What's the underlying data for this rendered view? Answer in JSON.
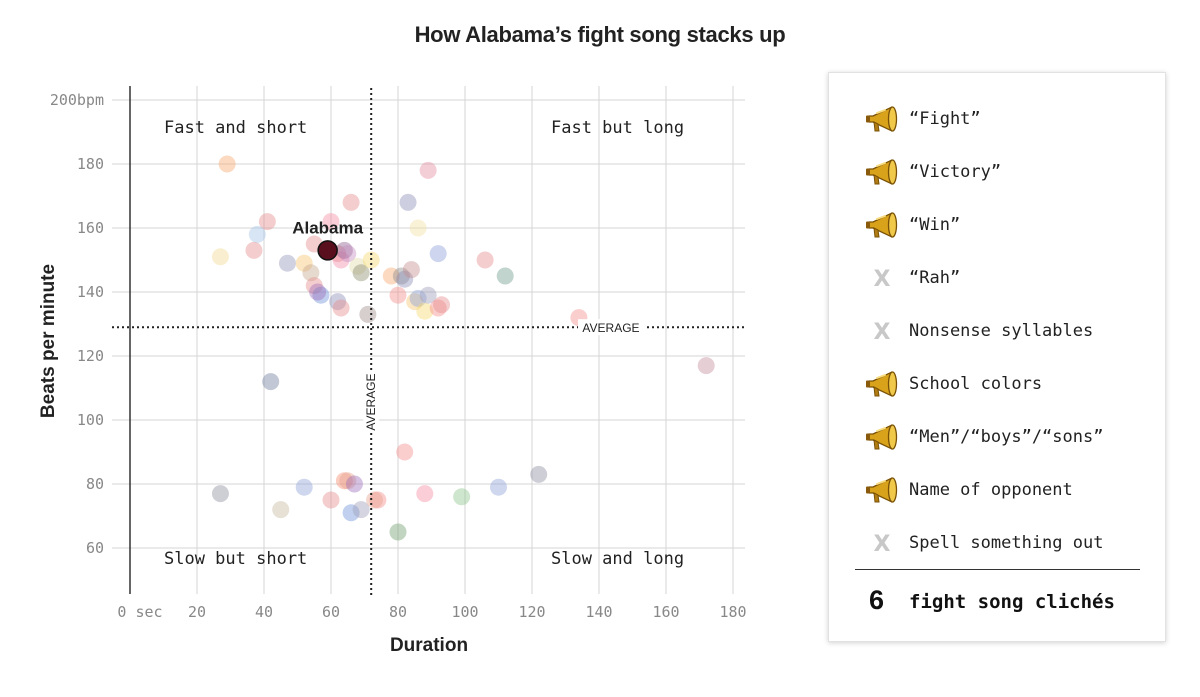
{
  "chart_data": {
    "type": "scatter",
    "title": "How Alabama’s fight song stacks up",
    "xlabel": "Duration",
    "ylabel": "Beats per minute",
    "xlim": [
      0,
      185
    ],
    "ylim": [
      45,
      205
    ],
    "x_ticks": [
      {
        "value": 0,
        "label": "0 sec"
      },
      {
        "value": 20,
        "label": "20"
      },
      {
        "value": 40,
        "label": "40"
      },
      {
        "value": 60,
        "label": "60"
      },
      {
        "value": 80,
        "label": "80"
      },
      {
        "value": 100,
        "label": "100"
      },
      {
        "value": 120,
        "label": "120"
      },
      {
        "value": 140,
        "label": "140"
      },
      {
        "value": 160,
        "label": "160"
      },
      {
        "value": 180,
        "label": "180"
      }
    ],
    "y_ticks": [
      {
        "value": 60,
        "label": "60"
      },
      {
        "value": 80,
        "label": "80"
      },
      {
        "value": 100,
        "label": "100"
      },
      {
        "value": 120,
        "label": "120"
      },
      {
        "value": 140,
        "label": "140"
      },
      {
        "value": 160,
        "label": "160"
      },
      {
        "value": 180,
        "label": "180"
      },
      {
        "value": 200,
        "label": "200bpm"
      }
    ],
    "grid": true,
    "average": {
      "duration": 72,
      "bpm": 129,
      "label": "AVERAGE"
    },
    "quadrant_labels": {
      "top_left": "Fast and short",
      "top_right": "Fast but long",
      "bottom_left": "Slow but short",
      "bottom_right": "Slow and long"
    },
    "highlight": {
      "name": "Alabama",
      "x": 59,
      "y": 153,
      "color": "#5a0f1e"
    },
    "points": [
      {
        "x": 29,
        "y": 180,
        "color": "#f5a66b"
      },
      {
        "x": 41,
        "y": 162,
        "color": "#e58a8a"
      },
      {
        "x": 38,
        "y": 158,
        "color": "#9fc0e8"
      },
      {
        "x": 37,
        "y": 153,
        "color": "#e58a8a"
      },
      {
        "x": 27,
        "y": 151,
        "color": "#f0d890"
      },
      {
        "x": 47,
        "y": 149,
        "color": "#8f93b8"
      },
      {
        "x": 52,
        "y": 149,
        "color": "#f5c36b"
      },
      {
        "x": 54,
        "y": 146,
        "color": "#c4a48a"
      },
      {
        "x": 55,
        "y": 142,
        "color": "#e58a8a"
      },
      {
        "x": 57,
        "y": 139,
        "color": "#6b8fd6"
      },
      {
        "x": 56,
        "y": 140,
        "color": "#9b6bb8"
      },
      {
        "x": 55,
        "y": 155,
        "color": "#e58a8a"
      },
      {
        "x": 60,
        "y": 162,
        "color": "#f58aa0"
      },
      {
        "x": 66,
        "y": 168,
        "color": "#e58a8a"
      },
      {
        "x": 62,
        "y": 152,
        "color": "#e58a8a"
      },
      {
        "x": 63,
        "y": 150,
        "color": "#f08aa8"
      },
      {
        "x": 64,
        "y": 153,
        "color": "#8a5a8a"
      },
      {
        "x": 65,
        "y": 152,
        "color": "#c48ac0"
      },
      {
        "x": 68,
        "y": 148,
        "color": "#e0d8a8"
      },
      {
        "x": 69,
        "y": 146,
        "color": "#8a8a6b"
      },
      {
        "x": 72,
        "y": 150,
        "color": "#f5d86b"
      },
      {
        "x": 62,
        "y": 137,
        "color": "#8a8ab8"
      },
      {
        "x": 63,
        "y": 135,
        "color": "#e58a8a"
      },
      {
        "x": 71,
        "y": 133,
        "color": "#a08a8a"
      },
      {
        "x": 78,
        "y": 145,
        "color": "#f5a66b"
      },
      {
        "x": 81,
        "y": 145,
        "color": "#8a8a8a"
      },
      {
        "x": 82,
        "y": 144,
        "color": "#8a8ab8"
      },
      {
        "x": 84,
        "y": 147,
        "color": "#c48a8a"
      },
      {
        "x": 80,
        "y": 139,
        "color": "#f58a8a"
      },
      {
        "x": 85,
        "y": 137,
        "color": "#f5c36b"
      },
      {
        "x": 86,
        "y": 138,
        "color": "#8aa0d6"
      },
      {
        "x": 88,
        "y": 134,
        "color": "#f5d86b"
      },
      {
        "x": 89,
        "y": 139,
        "color": "#9a9ab8"
      },
      {
        "x": 92,
        "y": 135,
        "color": "#f58a8a"
      },
      {
        "x": 93,
        "y": 136,
        "color": "#e58a8a"
      },
      {
        "x": 83,
        "y": 168,
        "color": "#8a8ab8"
      },
      {
        "x": 86,
        "y": 160,
        "color": "#f0e0a0"
      },
      {
        "x": 89,
        "y": 178,
        "color": "#e58aa0"
      },
      {
        "x": 92,
        "y": 152,
        "color": "#8a9ad6"
      },
      {
        "x": 106,
        "y": 150,
        "color": "#e58a8a"
      },
      {
        "x": 112,
        "y": 145,
        "color": "#6b9a8a"
      },
      {
        "x": 134,
        "y": 132,
        "color": "#f58a8a"
      },
      {
        "x": 172,
        "y": 117,
        "color": "#c48a9a"
      },
      {
        "x": 42,
        "y": 112,
        "color": "#6b7a9a"
      },
      {
        "x": 27,
        "y": 77,
        "color": "#8a8a9a"
      },
      {
        "x": 45,
        "y": 72,
        "color": "#c4b49a"
      },
      {
        "x": 52,
        "y": 79,
        "color": "#8aa0d6"
      },
      {
        "x": 60,
        "y": 75,
        "color": "#e58a8a"
      },
      {
        "x": 64,
        "y": 81,
        "color": "#f58a6b"
      },
      {
        "x": 65,
        "y": 81,
        "color": "#e5a08a"
      },
      {
        "x": 67,
        "y": 80,
        "color": "#9a6bb8"
      },
      {
        "x": 66,
        "y": 71,
        "color": "#6b8fd6"
      },
      {
        "x": 69,
        "y": 72,
        "color": "#9a9ab8"
      },
      {
        "x": 74,
        "y": 75,
        "color": "#f58a8a"
      },
      {
        "x": 73,
        "y": 75,
        "color": "#e5a08a"
      },
      {
        "x": 80,
        "y": 65,
        "color": "#6b9a6b"
      },
      {
        "x": 82,
        "y": 90,
        "color": "#f58a8a"
      },
      {
        "x": 88,
        "y": 77,
        "color": "#f58aa0"
      },
      {
        "x": 99,
        "y": 76,
        "color": "#8ac08a"
      },
      {
        "x": 110,
        "y": 79,
        "color": "#8aa0d6"
      },
      {
        "x": 122,
        "y": 83,
        "color": "#8a8aa0"
      }
    ]
  },
  "legend": {
    "items": [
      {
        "label": "“Fight”",
        "present": true
      },
      {
        "label": "“Victory”",
        "present": true
      },
      {
        "label": "“Win”",
        "present": true
      },
      {
        "label": "“Rah”",
        "present": false
      },
      {
        "label": "Nonsense syllables",
        "present": false
      },
      {
        "label": "School colors",
        "present": true
      },
      {
        "label": "“Men”/“boys”/“sons”",
        "present": true
      },
      {
        "label": "Name of opponent",
        "present": true
      },
      {
        "label": "Spell something out",
        "present": false
      }
    ],
    "absent_mark": "X",
    "total_count": "6",
    "total_label": "fight song clichés"
  }
}
